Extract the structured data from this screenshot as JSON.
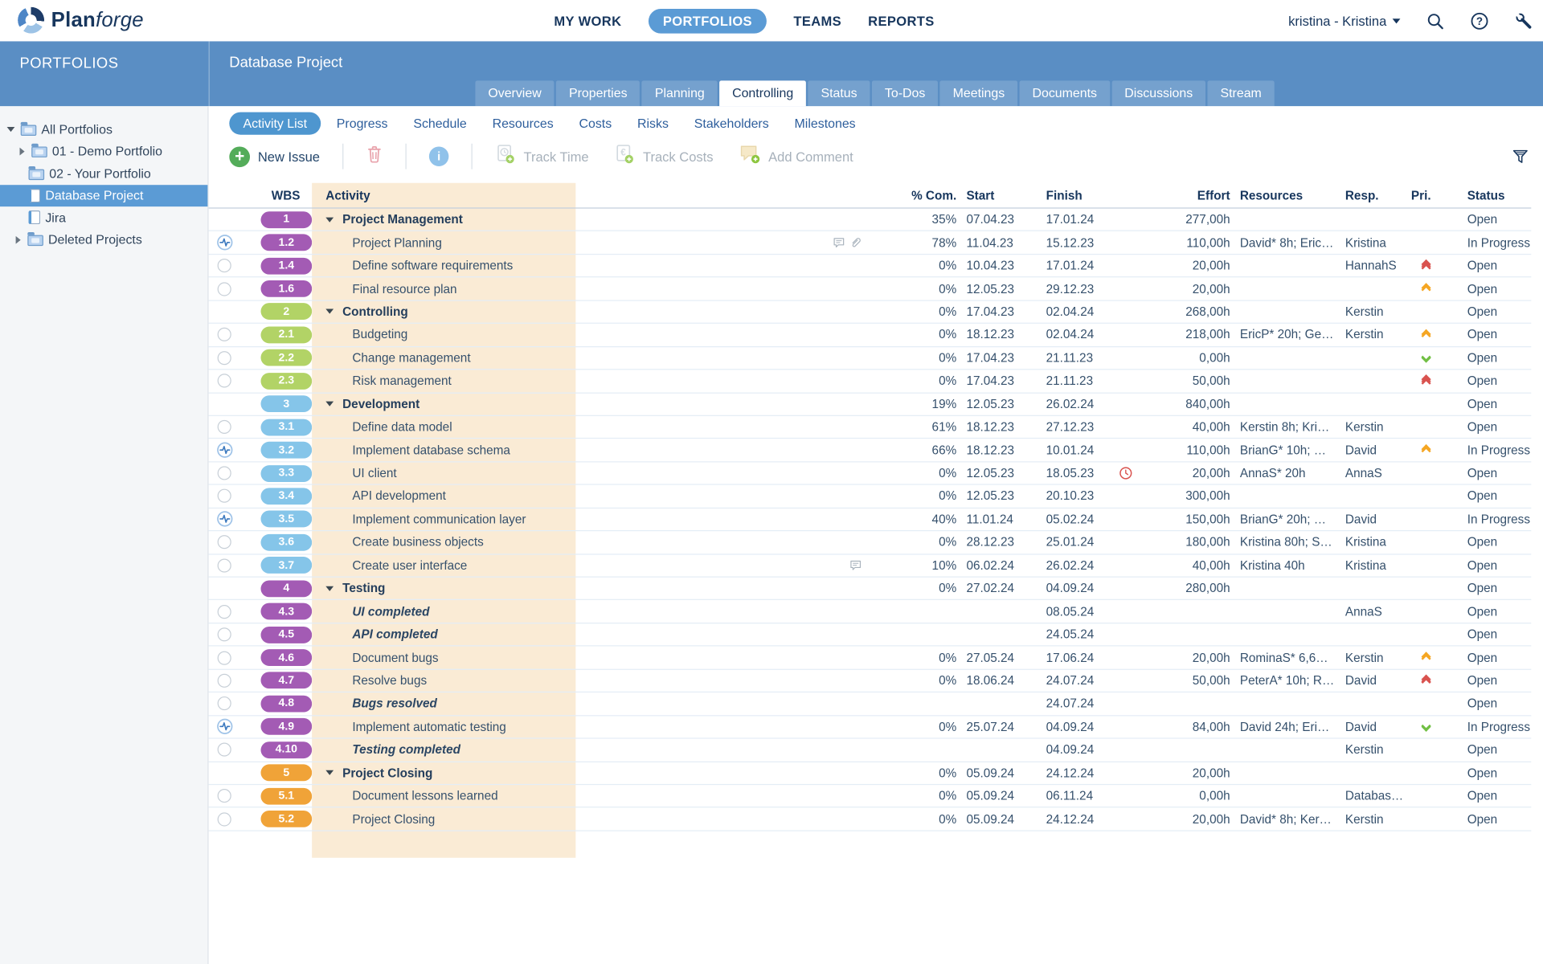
{
  "palette": {
    "accent": "#5B9BD5",
    "band_blue": "#5A8EC4",
    "navy_text": "#17365D",
    "peach": "#FAEBD5",
    "badge_purple": "#A35BB4",
    "badge_green": "#B2D366",
    "badge_blue": "#85C5E9",
    "badge_orange": "#F0A338",
    "priority_highest": "#D9534F",
    "priority_high": "#F5A623",
    "priority_low": "#71BF44"
  },
  "topbar": {
    "logo": {
      "bold": "Plan",
      "light": "forge"
    },
    "nav": [
      {
        "label": "MY WORK",
        "active": false
      },
      {
        "label": "PORTFOLIOS",
        "active": true
      },
      {
        "label": "TEAMS",
        "active": false
      },
      {
        "label": "REPORTS",
        "active": false
      }
    ],
    "user_menu": "kristina - Kristina",
    "icons": [
      "search-icon",
      "help-icon",
      "tools-icon"
    ]
  },
  "sidebar": {
    "title": "PORTFOLIOS",
    "tree": [
      {
        "label": "All Portfolios",
        "icon": "folder",
        "arrow": "down",
        "indent": 6,
        "selected": false
      },
      {
        "label": "01 - Demo Portfolio",
        "icon": "folder",
        "arrow": "right",
        "indent": 17,
        "selected": false
      },
      {
        "label": "02 - Your Portfolio",
        "icon": "folder",
        "arrow": "none",
        "indent": 29,
        "selected": false
      },
      {
        "label": "Database Project",
        "icon": "project",
        "arrow": "none",
        "indent": 29,
        "selected": true
      },
      {
        "label": "Jira",
        "icon": "project",
        "arrow": "none",
        "indent": 29,
        "selected": false
      },
      {
        "label": "Deleted Projects",
        "icon": "folder",
        "arrow": "right",
        "indent": 13,
        "selected": false
      }
    ]
  },
  "header": {
    "title": "Database Project",
    "tabs": [
      {
        "label": "Overview",
        "active": false
      },
      {
        "label": "Properties",
        "active": false
      },
      {
        "label": "Planning",
        "active": false
      },
      {
        "label": "Controlling",
        "active": true
      },
      {
        "label": "Status",
        "active": false
      },
      {
        "label": "To-Dos",
        "active": false
      },
      {
        "label": "Meetings",
        "active": false
      },
      {
        "label": "Documents",
        "active": false
      },
      {
        "label": "Discussions",
        "active": false
      },
      {
        "label": "Stream",
        "active": false
      }
    ]
  },
  "subtabs": [
    {
      "label": "Activity List",
      "active": true
    },
    {
      "label": "Progress",
      "active": false
    },
    {
      "label": "Schedule",
      "active": false
    },
    {
      "label": "Resources",
      "active": false
    },
    {
      "label": "Costs",
      "active": false
    },
    {
      "label": "Risks",
      "active": false
    },
    {
      "label": "Stakeholders",
      "active": false
    },
    {
      "label": "Milestones",
      "active": false
    }
  ],
  "toolbar": {
    "new_issue": "New Issue",
    "track_time": "Track Time",
    "track_costs": "Track Costs",
    "add_comment": "Add Comment"
  },
  "table": {
    "columns": {
      "wbs": "WBS",
      "activity": "Activity",
      "pct": "% Com.",
      "start": "Start",
      "finish": "Finish",
      "effort": "Effort",
      "resources": "Resources",
      "resp": "Resp.",
      "pri": "Pri.",
      "status": "Status"
    },
    "rows": [
      {
        "wbs": "1",
        "color": "purple",
        "kind": "group",
        "activity": "Project Management",
        "pct": "35%",
        "start": "07.04.23",
        "finish": "17.01.24",
        "effort": "277,00h",
        "status": "Open"
      },
      {
        "wbs": "1.2",
        "color": "purple",
        "kind": "task",
        "indicator": "pulse",
        "activity": "Project Planning",
        "icons": [
          "comment",
          "attachment"
        ],
        "pct": "78%",
        "start": "11.04.23",
        "finish": "15.12.23",
        "effort": "110,00h",
        "resources": "David* 8h; Eric…",
        "resp": "Kristina",
        "status": "In Progress"
      },
      {
        "wbs": "1.4",
        "color": "purple",
        "kind": "task",
        "indicator": "circle",
        "activity": "Define software requirements",
        "pct": "0%",
        "start": "10.04.23",
        "finish": "17.01.24",
        "effort": "20,00h",
        "resp": "HannahS",
        "pri": "highest",
        "status": "Open"
      },
      {
        "wbs": "1.6",
        "color": "purple",
        "kind": "task",
        "indicator": "circle",
        "activity": "Final resource plan",
        "pct": "0%",
        "start": "12.05.23",
        "finish": "29.12.23",
        "effort": "20,00h",
        "pri": "high",
        "status": "Open"
      },
      {
        "wbs": "2",
        "color": "green",
        "kind": "group",
        "activity": "Controlling",
        "pct": "0%",
        "start": "17.04.23",
        "finish": "02.04.24",
        "effort": "268,00h",
        "resp": "Kerstin",
        "status": "Open"
      },
      {
        "wbs": "2.1",
        "color": "green",
        "kind": "task",
        "indicator": "circle",
        "activity": "Budgeting",
        "pct": "0%",
        "start": "18.12.23",
        "finish": "02.04.24",
        "effort": "218,00h",
        "resources": "EricP* 20h; Ge…",
        "resp": "Kerstin",
        "pri": "high",
        "status": "Open"
      },
      {
        "wbs": "2.2",
        "color": "green",
        "kind": "task",
        "indicator": "circle",
        "activity": "Change management",
        "pct": "0%",
        "start": "17.04.23",
        "finish": "21.11.23",
        "effort": "0,00h",
        "pri": "low",
        "status": "Open"
      },
      {
        "wbs": "2.3",
        "color": "green",
        "kind": "task",
        "indicator": "circle",
        "activity": "Risk management",
        "pct": "0%",
        "start": "17.04.23",
        "finish": "21.11.23",
        "effort": "50,00h",
        "pri": "highest",
        "status": "Open"
      },
      {
        "wbs": "3",
        "color": "blue",
        "kind": "group",
        "activity": "Development",
        "pct": "19%",
        "start": "12.05.23",
        "finish": "26.02.24",
        "effort": "840,00h",
        "status": "Open"
      },
      {
        "wbs": "3.1",
        "color": "blue",
        "kind": "task",
        "indicator": "circle",
        "activity": "Define data model",
        "pct": "61%",
        "start": "18.12.23",
        "finish": "27.12.23",
        "effort": "40,00h",
        "resources": "Kerstin 8h; Kri…",
        "resp": "Kerstin",
        "status": "Open"
      },
      {
        "wbs": "3.2",
        "color": "blue",
        "kind": "task",
        "indicator": "pulse",
        "activity": "Implement database schema",
        "pct": "66%",
        "start": "18.12.23",
        "finish": "10.01.24",
        "effort": "110,00h",
        "resources": "BrianG* 10h; …",
        "resp": "David",
        "pri": "high",
        "status": "In Progress"
      },
      {
        "wbs": "3.3",
        "color": "blue",
        "kind": "task",
        "indicator": "circle",
        "activity": "UI client",
        "pct": "0%",
        "start": "12.05.23",
        "finish": "18.05.23",
        "deadline": true,
        "effort": "20,00h",
        "resources": "AnnaS* 20h",
        "resp": "AnnaS",
        "status": "Open"
      },
      {
        "wbs": "3.4",
        "color": "blue",
        "kind": "task",
        "indicator": "circle",
        "activity": "API development",
        "pct": "0%",
        "start": "12.05.23",
        "finish": "20.10.23",
        "effort": "300,00h",
        "status": "Open"
      },
      {
        "wbs": "3.5",
        "color": "blue",
        "kind": "task",
        "indicator": "pulse",
        "activity": "Implement communication layer",
        "pct": "40%",
        "start": "11.01.24",
        "finish": "05.02.24",
        "effort": "150,00h",
        "resources": "BrianG* 20h; …",
        "resp": "David",
        "status": "In Progress"
      },
      {
        "wbs": "3.6",
        "color": "blue",
        "kind": "task",
        "indicator": "circle",
        "activity": "Create business objects",
        "pct": "0%",
        "start": "28.12.23",
        "finish": "25.01.24",
        "effort": "180,00h",
        "resources": "Kristina 80h; S…",
        "resp": "Kristina",
        "status": "Open"
      },
      {
        "wbs": "3.7",
        "color": "blue",
        "kind": "task",
        "indicator": "circle",
        "activity": "Create user interface",
        "icons": [
          "comment"
        ],
        "pct": "10%",
        "start": "06.02.24",
        "finish": "26.02.24",
        "effort": "40,00h",
        "resources": "Kristina 40h",
        "resp": "Kristina",
        "status": "Open"
      },
      {
        "wbs": "4",
        "color": "purple",
        "kind": "group",
        "activity": "Testing",
        "pct": "0%",
        "start": "27.02.24",
        "finish": "04.09.24",
        "effort": "280,00h",
        "status": "Open"
      },
      {
        "wbs": "4.3",
        "color": "purple",
        "kind": "milestone",
        "indicator": "circle",
        "activity": "UI completed",
        "finish": "08.05.24",
        "resp": "AnnaS",
        "status": "Open"
      },
      {
        "wbs": "4.5",
        "color": "purple",
        "kind": "milestone",
        "indicator": "circle",
        "activity": "API completed",
        "finish": "24.05.24",
        "status": "Open"
      },
      {
        "wbs": "4.6",
        "color": "purple",
        "kind": "task",
        "indicator": "circle",
        "activity": "Document bugs",
        "pct": "0%",
        "start": "27.05.24",
        "finish": "17.06.24",
        "effort": "20,00h",
        "resources": "RominaS* 6,6…",
        "resp": "Kerstin",
        "pri": "high",
        "status": "Open"
      },
      {
        "wbs": "4.7",
        "color": "purple",
        "kind": "task",
        "indicator": "circle",
        "activity": "Resolve bugs",
        "pct": "0%",
        "start": "18.06.24",
        "finish": "24.07.24",
        "effort": "50,00h",
        "resources": "PeterA* 10h; R…",
        "resp": "David",
        "pri": "highest",
        "status": "Open"
      },
      {
        "wbs": "4.8",
        "color": "purple",
        "kind": "milestone",
        "indicator": "circle",
        "activity": "Bugs resolved",
        "finish": "24.07.24",
        "status": "Open"
      },
      {
        "wbs": "4.9",
        "color": "purple",
        "kind": "task",
        "indicator": "pulse",
        "activity": "Implement automatic testing",
        "pct": "0%",
        "start": "25.07.24",
        "finish": "04.09.24",
        "effort": "84,00h",
        "resources": "David 24h; Eri…",
        "resp": "David",
        "pri": "low",
        "status": "In Progress"
      },
      {
        "wbs": "4.10",
        "color": "purple",
        "kind": "milestone",
        "indicator": "circle",
        "activity": "Testing completed",
        "finish": "04.09.24",
        "resp": "Kerstin",
        "status": "Open"
      },
      {
        "wbs": "5",
        "color": "orange",
        "kind": "group",
        "activity": "Project Closing",
        "pct": "0%",
        "start": "05.09.24",
        "finish": "24.12.24",
        "effort": "20,00h",
        "status": "Open"
      },
      {
        "wbs": "5.1",
        "color": "orange",
        "kind": "task",
        "indicator": "circle",
        "activity": "Document lessons learned",
        "pct": "0%",
        "start": "05.09.24",
        "finish": "06.11.24",
        "effort": "0,00h",
        "resp": "Databas…",
        "status": "Open"
      },
      {
        "wbs": "5.2",
        "color": "orange",
        "kind": "task",
        "indicator": "circle",
        "activity": "Project Closing",
        "pct": "0%",
        "start": "05.09.24",
        "finish": "24.12.24",
        "effort": "20,00h",
        "resources": "David* 8h; Ker…",
        "resp": "Kerstin",
        "status": "Open"
      }
    ]
  }
}
